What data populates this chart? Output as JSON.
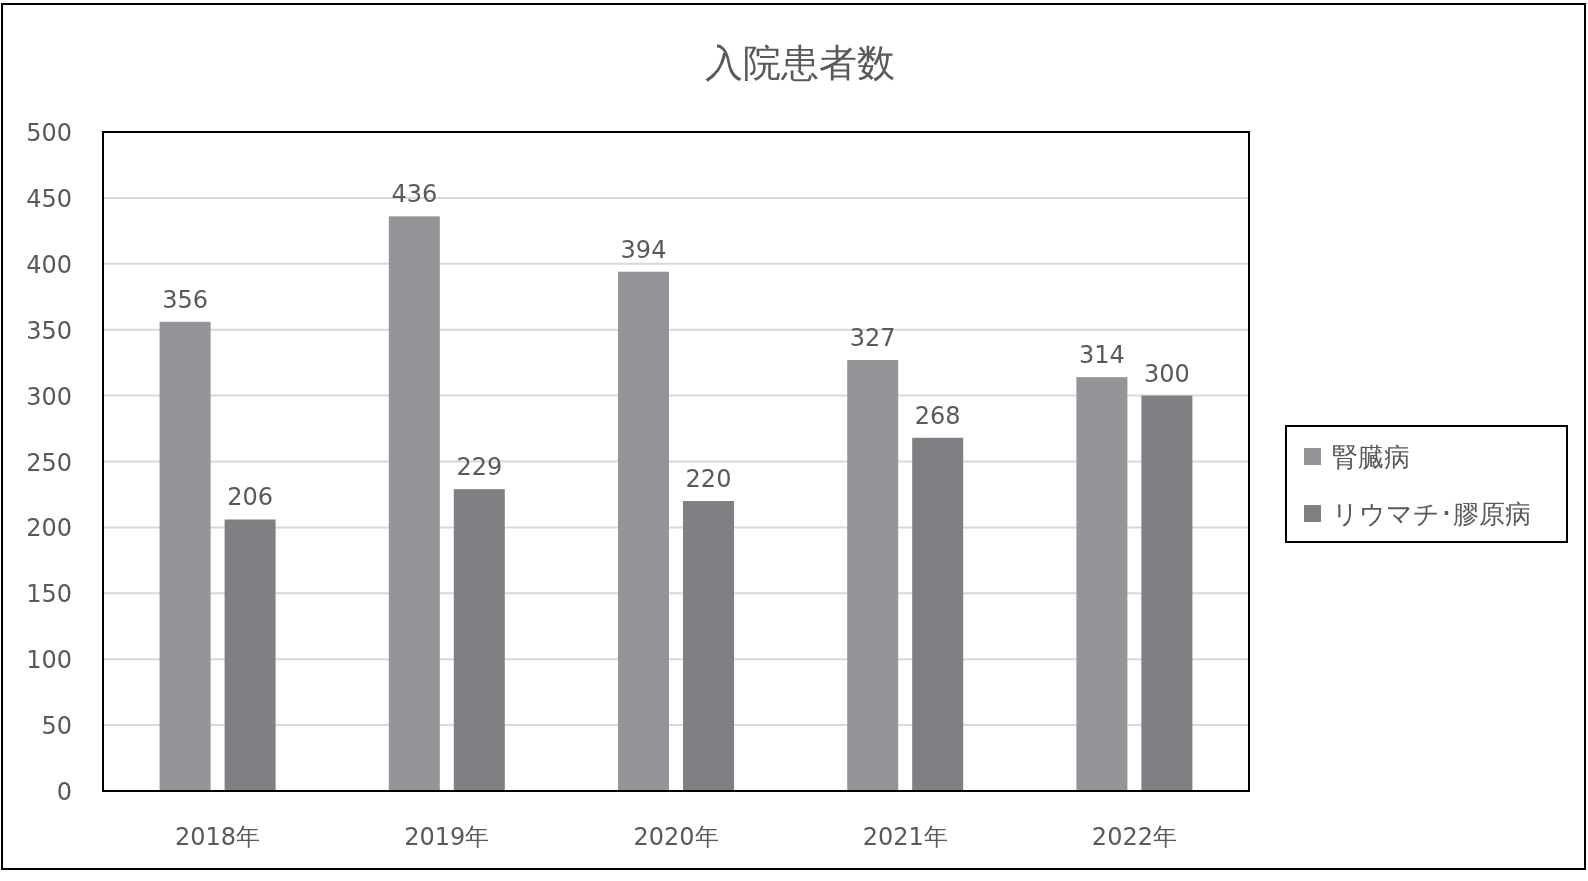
{
  "chart_data": {
    "type": "bar",
    "title": "入院患者数",
    "categories": [
      "2018年",
      "2019年",
      "2020年",
      "2021年",
      "2022年"
    ],
    "series": [
      {
        "name": "腎臓病",
        "color": "#939598",
        "values": [
          356,
          436,
          394,
          327,
          314
        ]
      },
      {
        "name": "リウマチ･膠原病",
        "color": "#7f8083",
        "values": [
          206,
          229,
          220,
          268,
          300
        ]
      }
    ],
    "ylim": [
      0,
      500
    ],
    "yticks": [
      0,
      50,
      100,
      150,
      200,
      250,
      300,
      350,
      400,
      450,
      500
    ],
    "grid": "y",
    "legend": "right",
    "data_labels": true
  }
}
